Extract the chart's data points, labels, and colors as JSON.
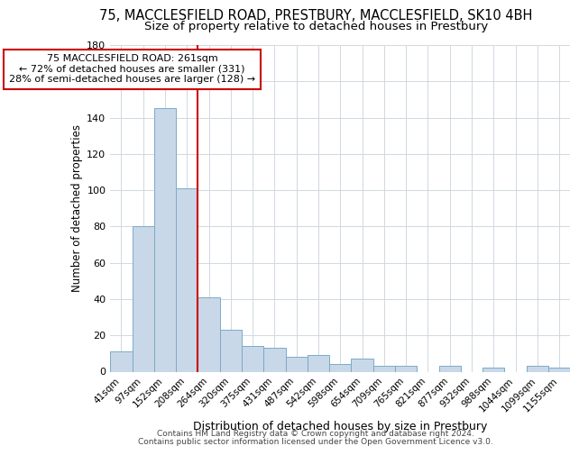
{
  "title": "75, MACCLESFIELD ROAD, PRESTBURY, MACCLESFIELD, SK10 4BH",
  "subtitle": "Size of property relative to detached houses in Prestbury",
  "xlabel": "Distribution of detached houses by size in Prestbury",
  "ylabel": "Number of detached properties",
  "categories": [
    "41sqm",
    "97sqm",
    "152sqm",
    "208sqm",
    "264sqm",
    "320sqm",
    "375sqm",
    "431sqm",
    "487sqm",
    "542sqm",
    "598sqm",
    "654sqm",
    "709sqm",
    "765sqm",
    "821sqm",
    "877sqm",
    "932sqm",
    "988sqm",
    "1044sqm",
    "1099sqm",
    "1155sqm"
  ],
  "values": [
    11,
    80,
    145,
    101,
    41,
    23,
    14,
    13,
    8,
    9,
    4,
    7,
    3,
    3,
    0,
    3,
    0,
    2,
    0,
    3,
    2
  ],
  "bar_color": "#c8d8e8",
  "bar_edge_color": "#7aaac8",
  "vline_idx": 4,
  "vline_color": "#cc0000",
  "annotation_line1": "75 MACCLESFIELD ROAD: 261sqm",
  "annotation_line2": "← 72% of detached houses are smaller (331)",
  "annotation_line3": "28% of semi-detached houses are larger (128) →",
  "annotation_box_color": "#ffffff",
  "annotation_box_edge": "#cc0000",
  "ylim": [
    0,
    180
  ],
  "yticks": [
    0,
    20,
    40,
    60,
    80,
    100,
    120,
    140,
    160,
    180
  ],
  "footer1": "Contains HM Land Registry data © Crown copyright and database right 2024.",
  "footer2": "Contains public sector information licensed under the Open Government Licence v3.0.",
  "title_fontsize": 10.5,
  "subtitle_fontsize": 9.5,
  "background_color": "#ffffff",
  "grid_color": "#d0d8e0"
}
